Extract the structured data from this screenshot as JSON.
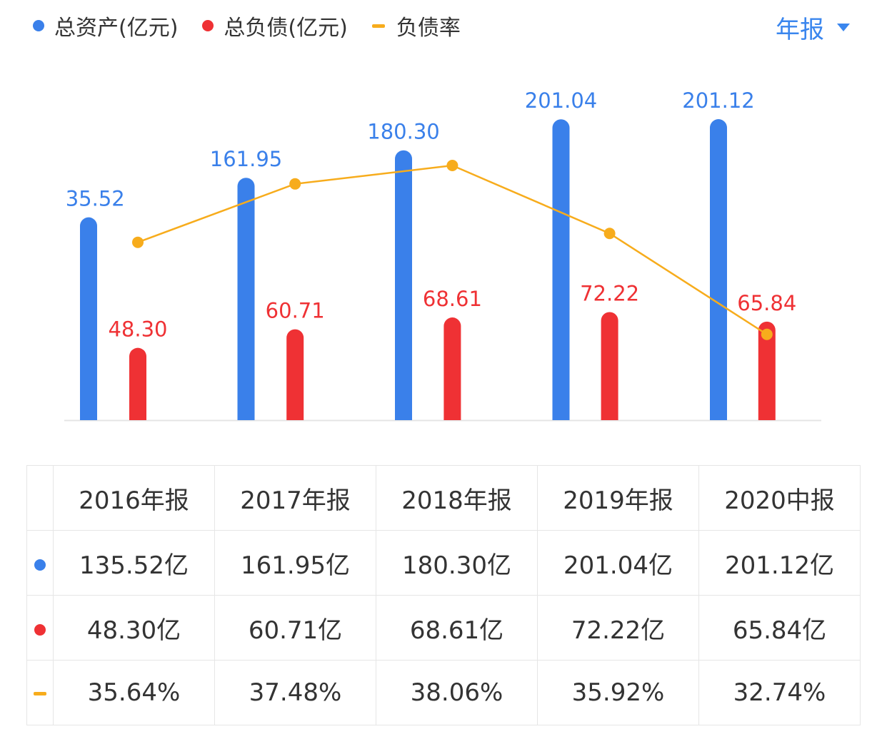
{
  "legend": {
    "assets": "总资产(亿元)",
    "liabilities": "总负债(亿元)",
    "ratio": "负债率"
  },
  "period_selector": {
    "label": "年报",
    "icon": "caret-down-icon"
  },
  "colors": {
    "assets": "#3a80ea",
    "liabilities": "#ef3134",
    "ratio": "#f7ac1c"
  },
  "chart_data": {
    "type": "bar",
    "categories": [
      "2016年报",
      "2017年报",
      "2018年报",
      "2019年报",
      "2020中报"
    ],
    "series": [
      {
        "name": "总资产(亿元)",
        "type": "bar",
        "values": [
          135.52,
          161.95,
          180.3,
          201.04,
          201.12
        ]
      },
      {
        "name": "总负债(亿元)",
        "type": "bar",
        "values": [
          48.3,
          60.71,
          68.61,
          72.22,
          65.84
        ]
      },
      {
        "name": "负债率",
        "type": "line",
        "unit": "%",
        "values": [
          35.64,
          37.48,
          38.06,
          35.92,
          32.74
        ]
      }
    ],
    "legend": "top-left",
    "grid": false
  },
  "table": {
    "headers": [
      "2016年报",
      "2017年报",
      "2018年报",
      "2019年报",
      "2020中报"
    ],
    "rows": [
      [
        "135.52亿",
        "161.95亿",
        "180.30亿",
        "201.04亿",
        "201.12亿"
      ],
      [
        "48.30亿",
        "60.71亿",
        "68.61亿",
        "72.22亿",
        "65.84亿"
      ],
      [
        "35.64%",
        "37.48%",
        "38.06%",
        "35.92%",
        "32.74%"
      ]
    ]
  }
}
